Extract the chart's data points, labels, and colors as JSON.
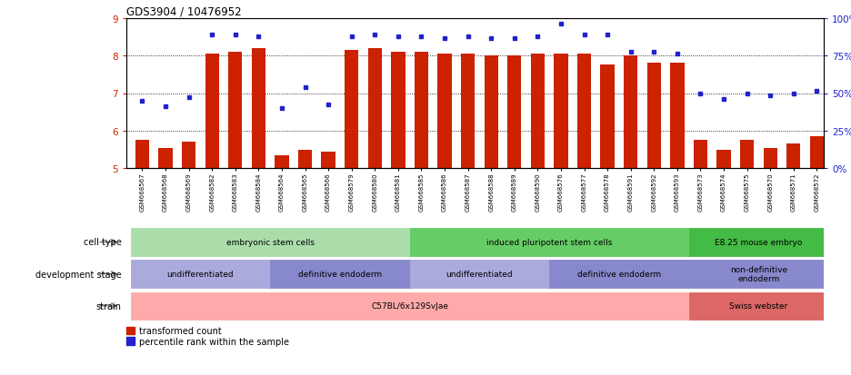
{
  "title": "GDS3904 / 10476952",
  "samples": [
    "GSM668567",
    "GSM668568",
    "GSM668569",
    "GSM668582",
    "GSM668583",
    "GSM668584",
    "GSM668564",
    "GSM668565",
    "GSM668566",
    "GSM668579",
    "GSM668580",
    "GSM668581",
    "GSM668585",
    "GSM668586",
    "GSM668587",
    "GSM668588",
    "GSM668589",
    "GSM668590",
    "GSM668576",
    "GSM668577",
    "GSM668578",
    "GSM668591",
    "GSM668592",
    "GSM668593",
    "GSM668573",
    "GSM668574",
    "GSM668575",
    "GSM668570",
    "GSM668571",
    "GSM668572"
  ],
  "bar_values": [
    5.75,
    5.55,
    5.7,
    8.05,
    8.1,
    8.2,
    5.35,
    5.5,
    5.45,
    8.15,
    8.2,
    8.1,
    8.1,
    8.05,
    8.05,
    8.0,
    8.0,
    8.05,
    8.05,
    8.05,
    7.75,
    8.0,
    7.8,
    7.8,
    5.75,
    5.5,
    5.75,
    5.55,
    5.65,
    5.85
  ],
  "dot_values": [
    6.8,
    6.65,
    6.9,
    8.55,
    8.55,
    8.5,
    6.6,
    7.15,
    6.7,
    8.5,
    8.55,
    8.5,
    8.5,
    8.45,
    8.5,
    8.45,
    8.45,
    8.5,
    8.85,
    8.55,
    8.55,
    8.1,
    8.1,
    8.05,
    7.0,
    6.85,
    7.0,
    6.95,
    7.0,
    7.05
  ],
  "ylim": [
    5.0,
    9.0
  ],
  "yticks_left": [
    5,
    6,
    7,
    8,
    9
  ],
  "yticks_right": [
    0,
    25,
    50,
    75,
    100
  ],
  "bar_color": "#cc2200",
  "dot_color": "#2222cc",
  "cell_type_groups": [
    {
      "label": "embryonic stem cells",
      "start": 0,
      "end": 11,
      "color": "#aaddaa"
    },
    {
      "label": "induced pluripotent stem cells",
      "start": 12,
      "end": 23,
      "color": "#66cc66"
    },
    {
      "label": "E8.25 mouse embryo",
      "start": 24,
      "end": 29,
      "color": "#44bb44"
    }
  ],
  "dev_stage_groups": [
    {
      "label": "undifferentiated",
      "start": 0,
      "end": 5,
      "color": "#aaaadd"
    },
    {
      "label": "definitive endoderm",
      "start": 6,
      "end": 11,
      "color": "#8888cc"
    },
    {
      "label": "undifferentiated",
      "start": 12,
      "end": 17,
      "color": "#aaaadd"
    },
    {
      "label": "definitive endoderm",
      "start": 18,
      "end": 23,
      "color": "#8888cc"
    },
    {
      "label": "non-definitive\nendoderm",
      "start": 24,
      "end": 29,
      "color": "#8888cc"
    }
  ],
  "strain_groups": [
    {
      "label": "C57BL/6x129SvJae",
      "start": 0,
      "end": 23,
      "color": "#ffaaaa"
    },
    {
      "label": "Swiss webster",
      "start": 24,
      "end": 29,
      "color": "#dd6666"
    }
  ],
  "row_labels": [
    "cell type",
    "development stage",
    "strain"
  ],
  "legend": [
    {
      "label": "transformed count",
      "color": "#cc2200"
    },
    {
      "label": "percentile rank within the sample",
      "color": "#2222cc"
    }
  ],
  "xlim_min": -0.7,
  "xlim_max": 29.3
}
